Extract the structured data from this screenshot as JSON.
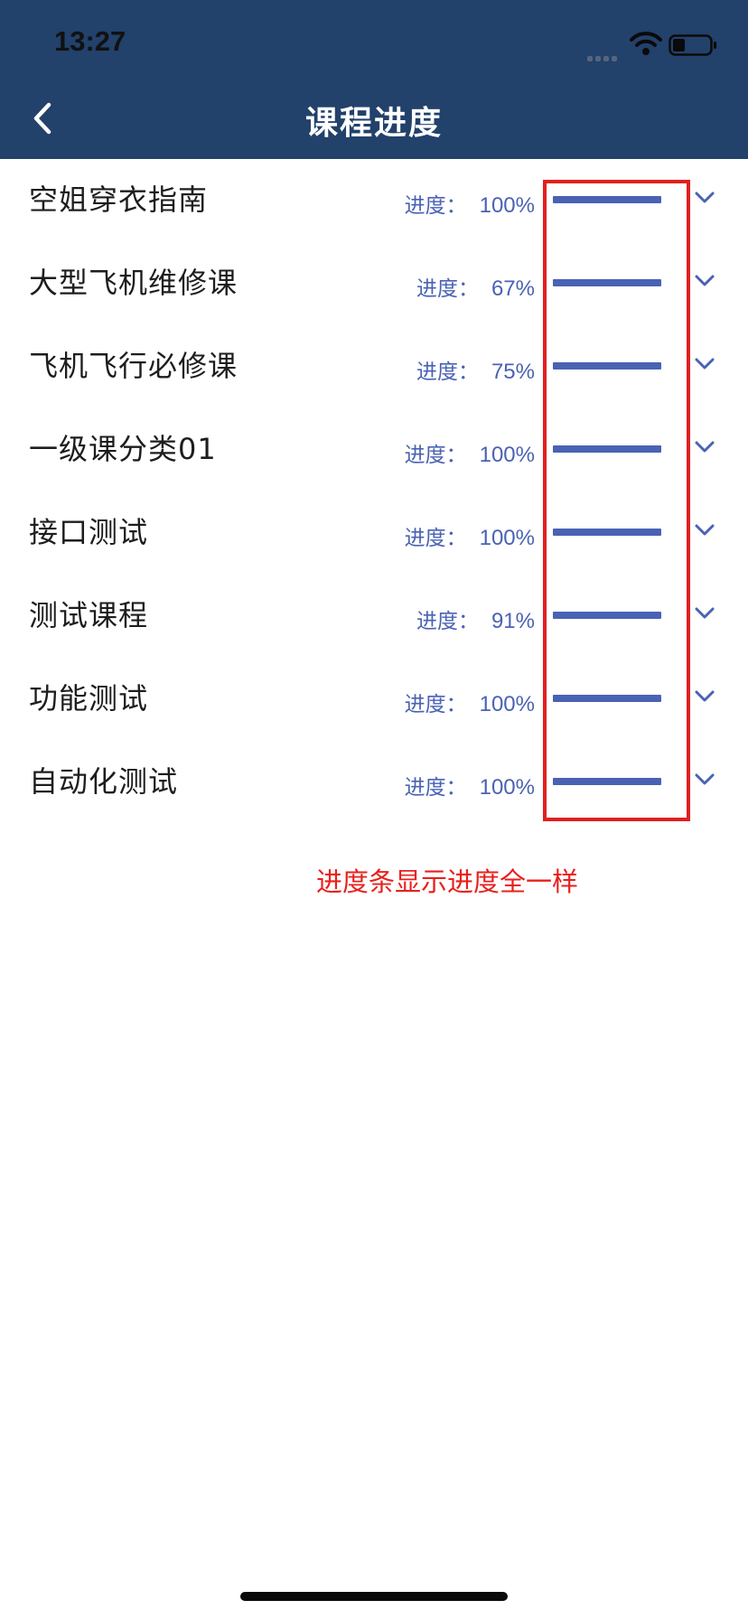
{
  "status_bar": {
    "time": "13:27",
    "icons": [
      "cellular-signal-icon",
      "wifi-icon",
      "battery-icon"
    ]
  },
  "header": {
    "title": "课程进度",
    "back_icon": "chevron-left-icon",
    "background_color": "#22416b"
  },
  "progress_label": "进度：",
  "courses": [
    {
      "name": "空姐穿衣指南",
      "progress": "100%",
      "bar_fill": 1.0
    },
    {
      "name": "大型飞机维修课",
      "progress": "67%",
      "bar_fill": 1.0
    },
    {
      "name": "飞机飞行必修课",
      "progress": "75%",
      "bar_fill": 1.0
    },
    {
      "name": "一级课分类01",
      "progress": "100%",
      "bar_fill": 1.0
    },
    {
      "name": "接口测试",
      "progress": "100%",
      "bar_fill": 1.0
    },
    {
      "name": "测试课程",
      "progress": "91%",
      "bar_fill": 1.0
    },
    {
      "name": "功能测试",
      "progress": "100%",
      "bar_fill": 1.0
    },
    {
      "name": "自动化测试",
      "progress": "100%",
      "bar_fill": 1.0
    }
  ],
  "annotation": "进度条显示进度全一样",
  "colors": {
    "accent": "#4a62b4",
    "annotation_red": "#e8201c",
    "highlight_box": "#e02020"
  }
}
